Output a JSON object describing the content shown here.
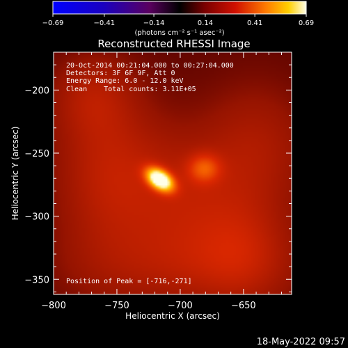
{
  "chart_data": {
    "type": "heatmap",
    "title": "Reconstructed RHESSI Image",
    "xlabel": "Heliocentric X (arcsec)",
    "ylabel": "Heliocentric Y (arcsec)",
    "xlim": [
      -800,
      -612
    ],
    "ylim": [
      -362,
      -170
    ],
    "x_ticks": [
      -800,
      -750,
      -700,
      -650
    ],
    "x_tick_labels": [
      "−800",
      "−750",
      "−700",
      "−650"
    ],
    "y_ticks": [
      -200,
      -250,
      -300,
      -350
    ],
    "y_tick_labels": [
      "−200",
      "−250",
      "−300",
      "−350"
    ],
    "colorbar": {
      "range": [
        -0.69,
        0.69
      ],
      "ticks": [
        -0.69,
        -0.41,
        -0.14,
        0.14,
        0.41,
        0.69
      ],
      "tick_labels": [
        "−0.69",
        "−0.41",
        "−0.14",
        "0.14",
        "0.41",
        "0.69"
      ],
      "unit_label": "(photons cm⁻² s⁻¹ asec⁻²)",
      "colormap": "red-temperature"
    },
    "annotations": [
      "20-Oct-2014 00:21:04.000 to 00:27:04.000",
      "Detectors: 3F 6F 9F, Att 0",
      "Energy Range: 6.0 - 12.0 keV",
      "Clean    Total counts: 3.11E+05"
    ],
    "peak_label": "Position of Peak = [-716,-271]",
    "peak": {
      "x": -716,
      "y": -271,
      "value": 0.69
    },
    "sources": [
      {
        "x": -716,
        "y": -271,
        "sigma_x": 8,
        "sigma_y": 5,
        "angle_deg": -35,
        "value": 0.69
      },
      {
        "x": -681,
        "y": -262,
        "sigma_x": 9,
        "sigma_y": 8,
        "angle_deg": 0,
        "value": 0.2
      },
      {
        "x": -700,
        "y": -285,
        "sigma_x": 45,
        "sigma_y": 35,
        "angle_deg": -30,
        "value": 0.13
      },
      {
        "x": -760,
        "y": -265,
        "sigma_x": 28,
        "sigma_y": 50,
        "angle_deg": 0,
        "value": 0.11
      },
      {
        "x": -640,
        "y": -245,
        "sigma_x": 30,
        "sigma_y": 35,
        "angle_deg": 0,
        "value": 0.1
      },
      {
        "x": -770,
        "y": -205,
        "sigma_x": 22,
        "sigma_y": 22,
        "angle_deg": 0,
        "value": 0.09
      },
      {
        "x": -700,
        "y": -340,
        "sigma_x": 60,
        "sigma_y": 25,
        "angle_deg": 0,
        "value": 0.1
      },
      {
        "x": -650,
        "y": -330,
        "sigma_x": 25,
        "sigma_y": 30,
        "angle_deg": 0,
        "value": 0.09
      }
    ],
    "background_value": 0.08
  },
  "footer": {
    "timestamp": "18-May-2022 09:57"
  }
}
